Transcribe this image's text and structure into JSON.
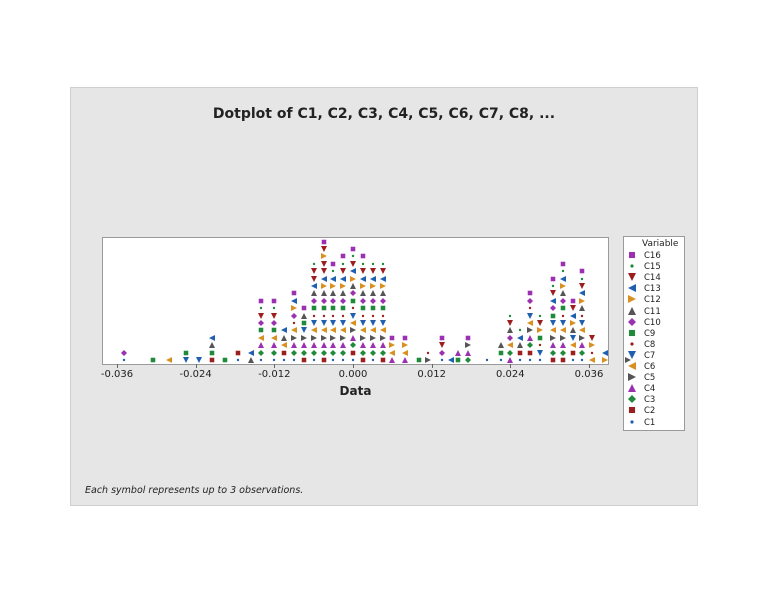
{
  "chart": {
    "title": "Dotplot of C1, C2, C3, C4, C5, C6, C7, C8, ...",
    "xlabel": "Data",
    "footnote": "Each symbol represents up to 3 observations.",
    "legend_title": "Variable"
  },
  "legend": [
    {
      "name": "C16",
      "shape": "square",
      "color": "#9b30b0"
    },
    {
      "name": "C15",
      "shape": "dot",
      "color": "#1f8a3a"
    },
    {
      "name": "C14",
      "shape": "tri-down",
      "color": "#9c1f1f"
    },
    {
      "name": "C13",
      "shape": "tri-left",
      "color": "#1f5fb0"
    },
    {
      "name": "C12",
      "shape": "tri-right",
      "color": "#d89020"
    },
    {
      "name": "C11",
      "shape": "tri-up",
      "color": "#555555"
    },
    {
      "name": "C10",
      "shape": "diamond",
      "color": "#9b30b0"
    },
    {
      "name": "C9",
      "shape": "square",
      "color": "#1f8a3a"
    },
    {
      "name": "C8",
      "shape": "dot",
      "color": "#9c1f1f"
    },
    {
      "name": "C7",
      "shape": "tri-down",
      "color": "#1f5fb0"
    },
    {
      "name": "C6",
      "shape": "tri-left",
      "color": "#d89020"
    },
    {
      "name": "C5",
      "shape": "tri-right",
      "color": "#555555"
    },
    {
      "name": "C4",
      "shape": "tri-up",
      "color": "#9b30b0"
    },
    {
      "name": "C3",
      "shape": "diamond",
      "color": "#1f8a3a"
    },
    {
      "name": "C2",
      "shape": "square",
      "color": "#9c1f1f"
    },
    {
      "name": "C1",
      "shape": "dot",
      "color": "#1f5fb0"
    }
  ],
  "chart_data": {
    "type": "dotplot",
    "title": "Dotplot of C1, C2, C3, C4, C5, C6, C7, C8, ...",
    "xlabel": "Data",
    "ylabel": "",
    "xlim": [
      -0.0385,
      0.0445
    ],
    "xticks": [
      -0.036,
      -0.024,
      -0.012,
      0.0,
      0.012,
      0.024,
      0.036
    ],
    "xtick_labels": [
      "-0.036",
      "-0.024",
      "-0.012",
      "0.000",
      "0.012",
      "0.024",
      "0.036"
    ],
    "legend_position": "right",
    "note": "Each symbol represents up to 3 observations.",
    "series_names": [
      "C1",
      "C2",
      "C3",
      "C4",
      "C5",
      "C6",
      "C7",
      "C8",
      "C9",
      "C10",
      "C11",
      "C12",
      "C13",
      "C14",
      "C15",
      "C16"
    ],
    "columns": [
      {
        "x": -0.035,
        "stack": [
          "C1",
          "C10"
        ]
      },
      {
        "x": -0.0305,
        "stack": [
          "C9"
        ]
      },
      {
        "x": -0.028,
        "stack": [
          "C6"
        ]
      },
      {
        "x": -0.0255,
        "stack": [
          "C7",
          "C9"
        ]
      },
      {
        "x": -0.0235,
        "stack": [
          "C7"
        ]
      },
      {
        "x": -0.0215,
        "stack": [
          "C2",
          "C9",
          "C11",
          "C13"
        ]
      },
      {
        "x": -0.0195,
        "stack": [
          "C9"
        ]
      },
      {
        "x": -0.0175,
        "stack": [
          "C1",
          "C2"
        ]
      },
      {
        "x": -0.0155,
        "stack": [
          "C11",
          "C13"
        ]
      },
      {
        "x": -0.014,
        "stack": [
          "C1",
          "C3",
          "C4",
          "C6",
          "C9",
          "C10",
          "C14",
          "C15",
          "C16"
        ]
      },
      {
        "x": -0.012,
        "stack": [
          "C1",
          "C3",
          "C4",
          "C6",
          "C9",
          "C10",
          "C14",
          "C15",
          "C16"
        ]
      },
      {
        "x": -0.0105,
        "stack": [
          "C1",
          "C2",
          "C6",
          "C11",
          "C13"
        ]
      },
      {
        "x": -0.009,
        "stack": [
          "C1",
          "C3",
          "C4",
          "C5",
          "C6",
          "C8",
          "C10",
          "C12",
          "C13",
          "C16"
        ]
      },
      {
        "x": -0.0075,
        "stack": [
          "C2",
          "C3",
          "C4",
          "C5",
          "C7",
          "C9",
          "C11",
          "C16"
        ]
      },
      {
        "x": -0.006,
        "stack": [
          "C1",
          "C3",
          "C4",
          "C5",
          "C6",
          "C7",
          "C8",
          "C9",
          "C10",
          "C11",
          "C13",
          "C14",
          "C14",
          "C15"
        ]
      },
      {
        "x": -0.0045,
        "stack": [
          "C2",
          "C3",
          "C4",
          "C5",
          "C6",
          "C7",
          "C8",
          "C9",
          "C10",
          "C11",
          "C12",
          "C13",
          "C14",
          "C14",
          "C12",
          "C14",
          "C16"
        ]
      },
      {
        "x": -0.003,
        "stack": [
          "C1",
          "C3",
          "C4",
          "C5",
          "C6",
          "C7",
          "C8",
          "C9",
          "C10",
          "C11",
          "C12",
          "C13",
          "C15",
          "C16"
        ]
      },
      {
        "x": -0.0015,
        "stack": [
          "C1",
          "C3",
          "C4",
          "C5",
          "C6",
          "C7",
          "C8",
          "C9",
          "C10",
          "C11",
          "C12",
          "C13",
          "C14",
          "C15",
          "C16"
        ]
      },
      {
        "x": 0.0,
        "stack": [
          "C1",
          "C2",
          "C3",
          "C4",
          "C5",
          "C6",
          "C7",
          "C8",
          "C9",
          "C10",
          "C11",
          "C12",
          "C13",
          "C14",
          "C15",
          "C16"
        ]
      },
      {
        "x": 0.0015,
        "stack": [
          "C2",
          "C3",
          "C4",
          "C5",
          "C6",
          "C7",
          "C8",
          "C9",
          "C10",
          "C11",
          "C12",
          "C13",
          "C14",
          "C15",
          "C16"
        ]
      },
      {
        "x": 0.003,
        "stack": [
          "C1",
          "C3",
          "C4",
          "C5",
          "C6",
          "C7",
          "C8",
          "C9",
          "C10",
          "C11",
          "C12",
          "C13",
          "C14",
          "C15"
        ]
      },
      {
        "x": 0.0045,
        "stack": [
          "C2",
          "C3",
          "C4",
          "C5",
          "C6",
          "C7",
          "C8",
          "C9",
          "C10",
          "C11",
          "C12",
          "C13",
          "C14",
          "C15"
        ]
      },
      {
        "x": 0.006,
        "stack": [
          "C4",
          "C6",
          "C12",
          "C16"
        ]
      },
      {
        "x": 0.008,
        "stack": [
          "C4",
          "C6",
          "C12",
          "C16"
        ]
      },
      {
        "x": 0.01,
        "stack": [
          "C9"
        ]
      },
      {
        "x": 0.0115,
        "stack": [
          "C5",
          "C8"
        ]
      },
      {
        "x": 0.0135,
        "stack": [
          "C1",
          "C10",
          "C14",
          "C16"
        ]
      },
      {
        "x": 0.015,
        "stack": [
          "C13"
        ]
      },
      {
        "x": 0.016,
        "stack": [
          "C9",
          "C4"
        ]
      },
      {
        "x": 0.0175,
        "stack": [
          "C3",
          "C4",
          "C5",
          "C16"
        ]
      },
      {
        "x": 0.0205,
        "stack": [
          "C1"
        ]
      },
      {
        "x": 0.0225,
        "stack": [
          "C1",
          "C9",
          "C11"
        ]
      },
      {
        "x": 0.024,
        "stack": [
          "C4",
          "C3",
          "C6",
          "C10",
          "C11",
          "C14",
          "C15"
        ]
      },
      {
        "x": 0.0255,
        "stack": [
          "C1",
          "C2",
          "C11",
          "C13",
          "C15"
        ]
      },
      {
        "x": 0.027,
        "stack": [
          "C1",
          "C2",
          "C3",
          "C4",
          "C5",
          "C6",
          "C7",
          "C8",
          "C10",
          "C16"
        ]
      },
      {
        "x": 0.0285,
        "stack": [
          "C1",
          "C7",
          "C8",
          "C9",
          "C12",
          "C14",
          "C15"
        ]
      },
      {
        "x": 0.0305,
        "stack": [
          "C2",
          "C3",
          "C4",
          "C5",
          "C6",
          "C7",
          "C9",
          "C10",
          "C13",
          "C14",
          "C15",
          "C16"
        ]
      },
      {
        "x": 0.032,
        "stack": [
          "C2",
          "C3",
          "C4",
          "C5",
          "C6",
          "C7",
          "C8",
          "C9",
          "C10",
          "C11",
          "C12",
          "C13",
          "C15",
          "C16"
        ]
      },
      {
        "x": 0.0335,
        "stack": [
          "C1",
          "C2",
          "C6",
          "C7",
          "C11",
          "C12",
          "C13",
          "C14",
          "C16"
        ]
      },
      {
        "x": 0.035,
        "stack": [
          "C1",
          "C3",
          "C4",
          "C5",
          "C6",
          "C7",
          "C8",
          "C11",
          "C12",
          "C13",
          "C14",
          "C15",
          "C16"
        ]
      },
      {
        "x": 0.0365,
        "stack": [
          "C6",
          "C8",
          "C12",
          "C14"
        ]
      },
      {
        "x": 0.0385,
        "stack": [
          "C12",
          "C13"
        ]
      },
      {
        "x": 0.042,
        "stack": [
          "C5"
        ]
      }
    ]
  }
}
